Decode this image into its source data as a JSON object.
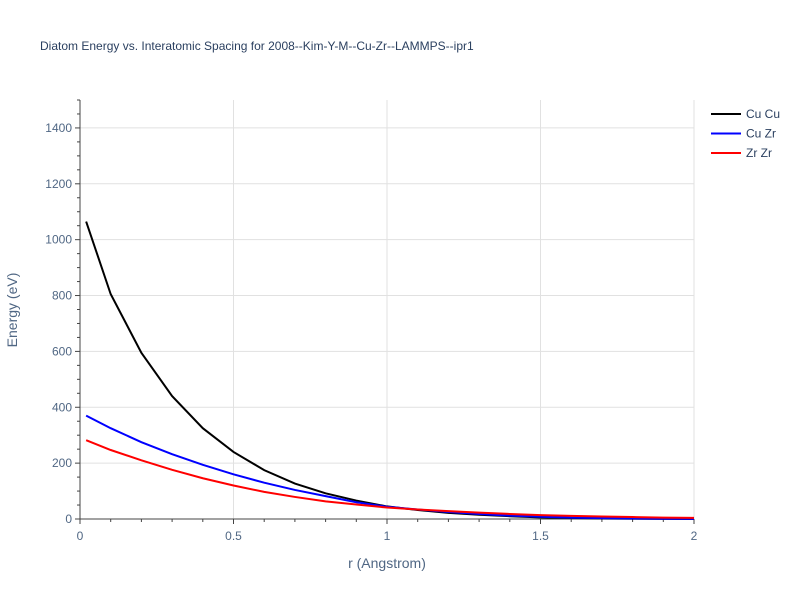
{
  "chart_data": {
    "type": "line",
    "title": "Diatom Energy vs. Interatomic Spacing for 2008--Kim-Y-M--Cu-Zr--LAMMPS--ipr1",
    "xlabel": "r (Angstrom)",
    "ylabel": "Energy (eV)",
    "xlim": [
      0,
      2
    ],
    "ylim": [
      0,
      1500
    ],
    "x_ticks": [
      0,
      0.5,
      1,
      1.5,
      2
    ],
    "x_tick_labels": [
      "0",
      "0.5",
      "1",
      "1.5",
      "2"
    ],
    "y_ticks": [
      0,
      200,
      400,
      600,
      800,
      1000,
      1200,
      1400
    ],
    "y_tick_labels": [
      "0",
      "200",
      "400",
      "600",
      "800",
      "1000",
      "1200",
      "1400"
    ],
    "grid": true,
    "legend_position": "top-right",
    "series": [
      {
        "name": "Cu Cu",
        "color": "#000000",
        "x": [
          0.02,
          0.1,
          0.2,
          0.3,
          0.4,
          0.5,
          0.6,
          0.7,
          0.8,
          0.9,
          1.0,
          1.1,
          1.2,
          1.3,
          1.4,
          1.5,
          1.6,
          1.7,
          1.8,
          1.9,
          2.0
        ],
        "y": [
          1065,
          805,
          595,
          440,
          325,
          240,
          175,
          127,
          92,
          66,
          45,
          32,
          22,
          15,
          10,
          6,
          4,
          2,
          1,
          0.5,
          0
        ]
      },
      {
        "name": "Cu Zr",
        "color": "#0000ff",
        "x": [
          0.02,
          0.1,
          0.2,
          0.3,
          0.4,
          0.5,
          0.6,
          0.7,
          0.8,
          0.9,
          1.0,
          1.1,
          1.2,
          1.3,
          1.4,
          1.5,
          1.6,
          1.7,
          1.8,
          1.9,
          2.0
        ],
        "y": [
          370,
          325,
          275,
          232,
          194,
          160,
          130,
          104,
          82,
          60,
          44,
          34,
          25,
          18,
          12,
          8,
          5,
          3,
          2,
          1,
          0.5
        ]
      },
      {
        "name": "Zr Zr",
        "color": "#ff0000",
        "x": [
          0.02,
          0.1,
          0.2,
          0.3,
          0.4,
          0.5,
          0.6,
          0.7,
          0.8,
          0.9,
          1.0,
          1.1,
          1.2,
          1.3,
          1.4,
          1.5,
          1.6,
          1.7,
          1.8,
          1.9,
          2.0
        ],
        "y": [
          282,
          247,
          210,
          176,
          146,
          120,
          97,
          79,
          63,
          52,
          41,
          34,
          28,
          23,
          18,
          14,
          11,
          9,
          7,
          5,
          4
        ]
      }
    ]
  }
}
